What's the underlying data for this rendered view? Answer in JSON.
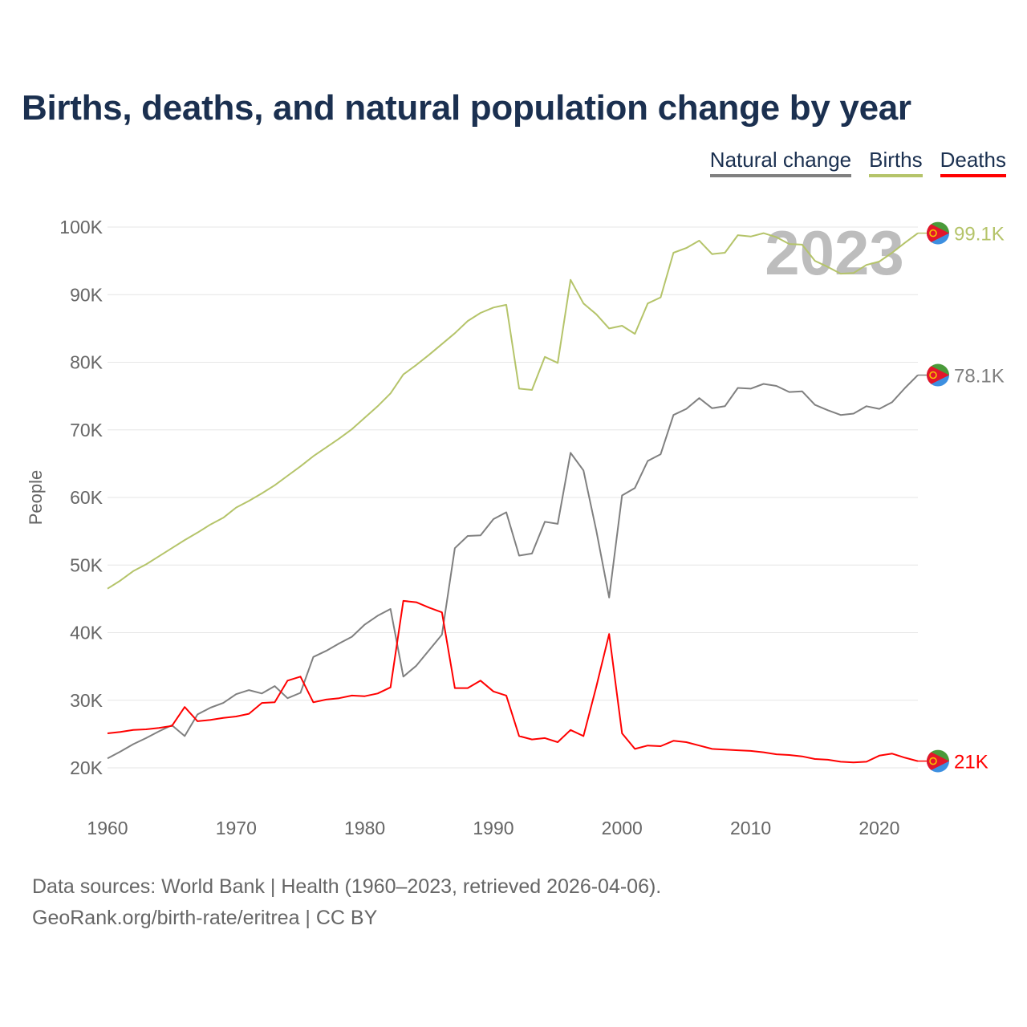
{
  "title": "Births, deaths, and natural population change by year",
  "legend": [
    {
      "label": "Natural change",
      "color": "#808080"
    },
    {
      "label": "Births",
      "color": "#b5c46a"
    },
    {
      "label": "Deaths",
      "color": "#ff0000"
    }
  ],
  "footer": {
    "line1": "Data sources: World Bank | Health (1960–2023, retrieved 2026-04-06).",
    "line2": "GeoRank.org/birth-rate/eritrea | CC BY"
  },
  "chart_data": {
    "type": "line",
    "title": "Births, deaths, and natural population change by year",
    "xlabel": "",
    "ylabel": "People",
    "xlim": [
      1960,
      2023
    ],
    "ylim": [
      20000,
      100000
    ],
    "x_ticks": [
      1960,
      1970,
      1980,
      1990,
      2000,
      2010,
      2020
    ],
    "y_ticks": [
      20000,
      30000,
      40000,
      50000,
      60000,
      70000,
      80000,
      90000,
      100000
    ],
    "y_tick_labels": [
      "20K",
      "30K",
      "40K",
      "50K",
      "60K",
      "70K",
      "80K",
      "90K",
      "100K"
    ],
    "year_watermark": "2023",
    "grid": "horizontal",
    "legend_position": "top-right",
    "start_year": 1960,
    "series": [
      {
        "name": "Natural change",
        "color": "#808080",
        "end_label": "78.1K",
        "values": [
          21.4,
          22.4,
          23.5,
          24.4,
          25.4,
          26.3,
          24.7,
          27.9,
          28.9,
          29.6,
          30.9,
          31.5,
          31.0,
          32.1,
          30.3,
          31.1,
          36.4,
          37.3,
          38.4,
          39.4,
          41.2,
          42.5,
          43.5,
          33.5,
          35.1,
          37.4,
          39.7,
          52.5,
          54.3,
          54.4,
          56.8,
          57.8,
          51.4,
          51.7,
          56.4,
          56.1,
          66.6,
          64.0,
          55.1,
          45.2,
          60.3,
          61.4,
          65.4,
          66.4,
          72.2,
          73.1,
          74.7,
          73.2,
          73.5,
          76.2,
          76.1,
          76.8,
          76.5,
          75.6,
          75.7,
          73.7,
          72.9,
          72.2,
          72.4,
          73.5,
          73.1,
          74.1,
          76.2,
          78.1
        ]
      },
      {
        "name": "Births",
        "color": "#b5c46a",
        "end_label": "99.1K",
        "values": [
          46.5,
          47.7,
          49.1,
          50.1,
          51.3,
          52.5,
          53.7,
          54.8,
          56.0,
          57.0,
          58.5,
          59.5,
          60.6,
          61.8,
          63.2,
          64.6,
          66.1,
          67.4,
          68.7,
          70.1,
          71.8,
          73.5,
          75.4,
          78.2,
          79.6,
          81.1,
          82.7,
          84.3,
          86.1,
          87.3,
          88.1,
          88.5,
          76.1,
          75.9,
          80.8,
          79.9,
          92.2,
          88.7,
          87.1,
          85.0,
          85.4,
          84.2,
          88.7,
          89.6,
          96.2,
          96.9,
          98.0,
          96.0,
          96.2,
          98.8,
          98.6,
          99.1,
          98.5,
          97.5,
          97.4,
          95.0,
          94.1,
          93.1,
          93.2,
          94.4,
          94.9,
          96.2,
          97.7,
          99.1
        ]
      },
      {
        "name": "Deaths",
        "color": "#ff0000",
        "end_label": "21K",
        "values": [
          25.1,
          25.3,
          25.6,
          25.7,
          25.9,
          26.2,
          29.0,
          26.9,
          27.1,
          27.4,
          27.6,
          28.0,
          29.6,
          29.7,
          32.9,
          33.5,
          29.7,
          30.1,
          30.3,
          30.7,
          30.6,
          31.0,
          31.9,
          44.7,
          44.5,
          43.7,
          43.0,
          31.8,
          31.8,
          32.9,
          31.3,
          30.7,
          24.7,
          24.2,
          24.4,
          23.8,
          25.6,
          24.7,
          32.0,
          39.8,
          25.1,
          22.8,
          23.3,
          23.2,
          24.0,
          23.8,
          23.3,
          22.8,
          22.7,
          22.6,
          22.5,
          22.3,
          22.0,
          21.9,
          21.7,
          21.3,
          21.2,
          20.9,
          20.8,
          20.9,
          21.8,
          22.1,
          21.5,
          21.0
        ]
      }
    ],
    "value_unit": "thousand people"
  }
}
